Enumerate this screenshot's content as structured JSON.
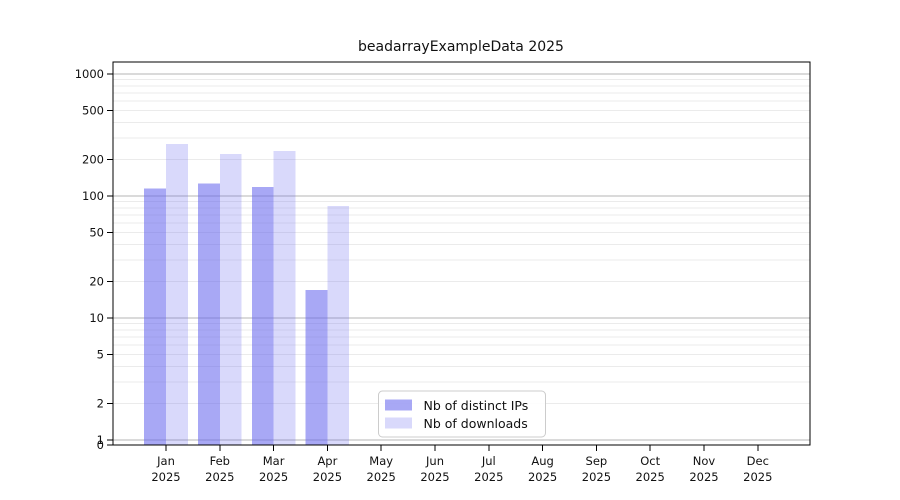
{
  "chart_data": {
    "type": "bar",
    "title": "beadarrayExampleData 2025",
    "yscale": "log",
    "categories": [
      "Jan 2025",
      "Feb 2025",
      "Mar 2025",
      "Apr 2025",
      "May 2025",
      "Jun 2025",
      "Jul 2025",
      "Aug 2025",
      "Sep 2025",
      "Oct 2025",
      "Nov 2025",
      "Dec 2025"
    ],
    "series": [
      {
        "name": "Nb of distinct IPs",
        "color": "#a7a7f7",
        "values": [
          115,
          127,
          119,
          17,
          null,
          null,
          null,
          null,
          null,
          null,
          null,
          null
        ]
      },
      {
        "name": "Nb of downloads",
        "color": "#d9d9f9",
        "values": [
          268,
          221,
          234,
          83,
          null,
          null,
          null,
          null,
          null,
          null,
          null,
          null
        ]
      },
      {
        "name_note": ""
      }
    ],
    "yticks": [
      1000,
      500,
      200,
      100,
      50,
      20,
      10,
      5,
      2,
      1,
      0
    ],
    "ylim": [
      0,
      1300
    ],
    "grid": "horizontal",
    "legend_position": "lower-center",
    "legend_labels": [
      "Nb of distinct IPs",
      "Nb of downloads"
    ]
  },
  "colors": {
    "bar_base": "#6666ee",
    "ips_alpha": 0.57,
    "downloads_alpha": 0.25,
    "grid_major": "#b5b5b5",
    "grid_minor": "#ebebeb",
    "axis": "#000000",
    "legend_border": "#cccccc",
    "legend_bg": "#ffffff",
    "text": "#111111"
  }
}
